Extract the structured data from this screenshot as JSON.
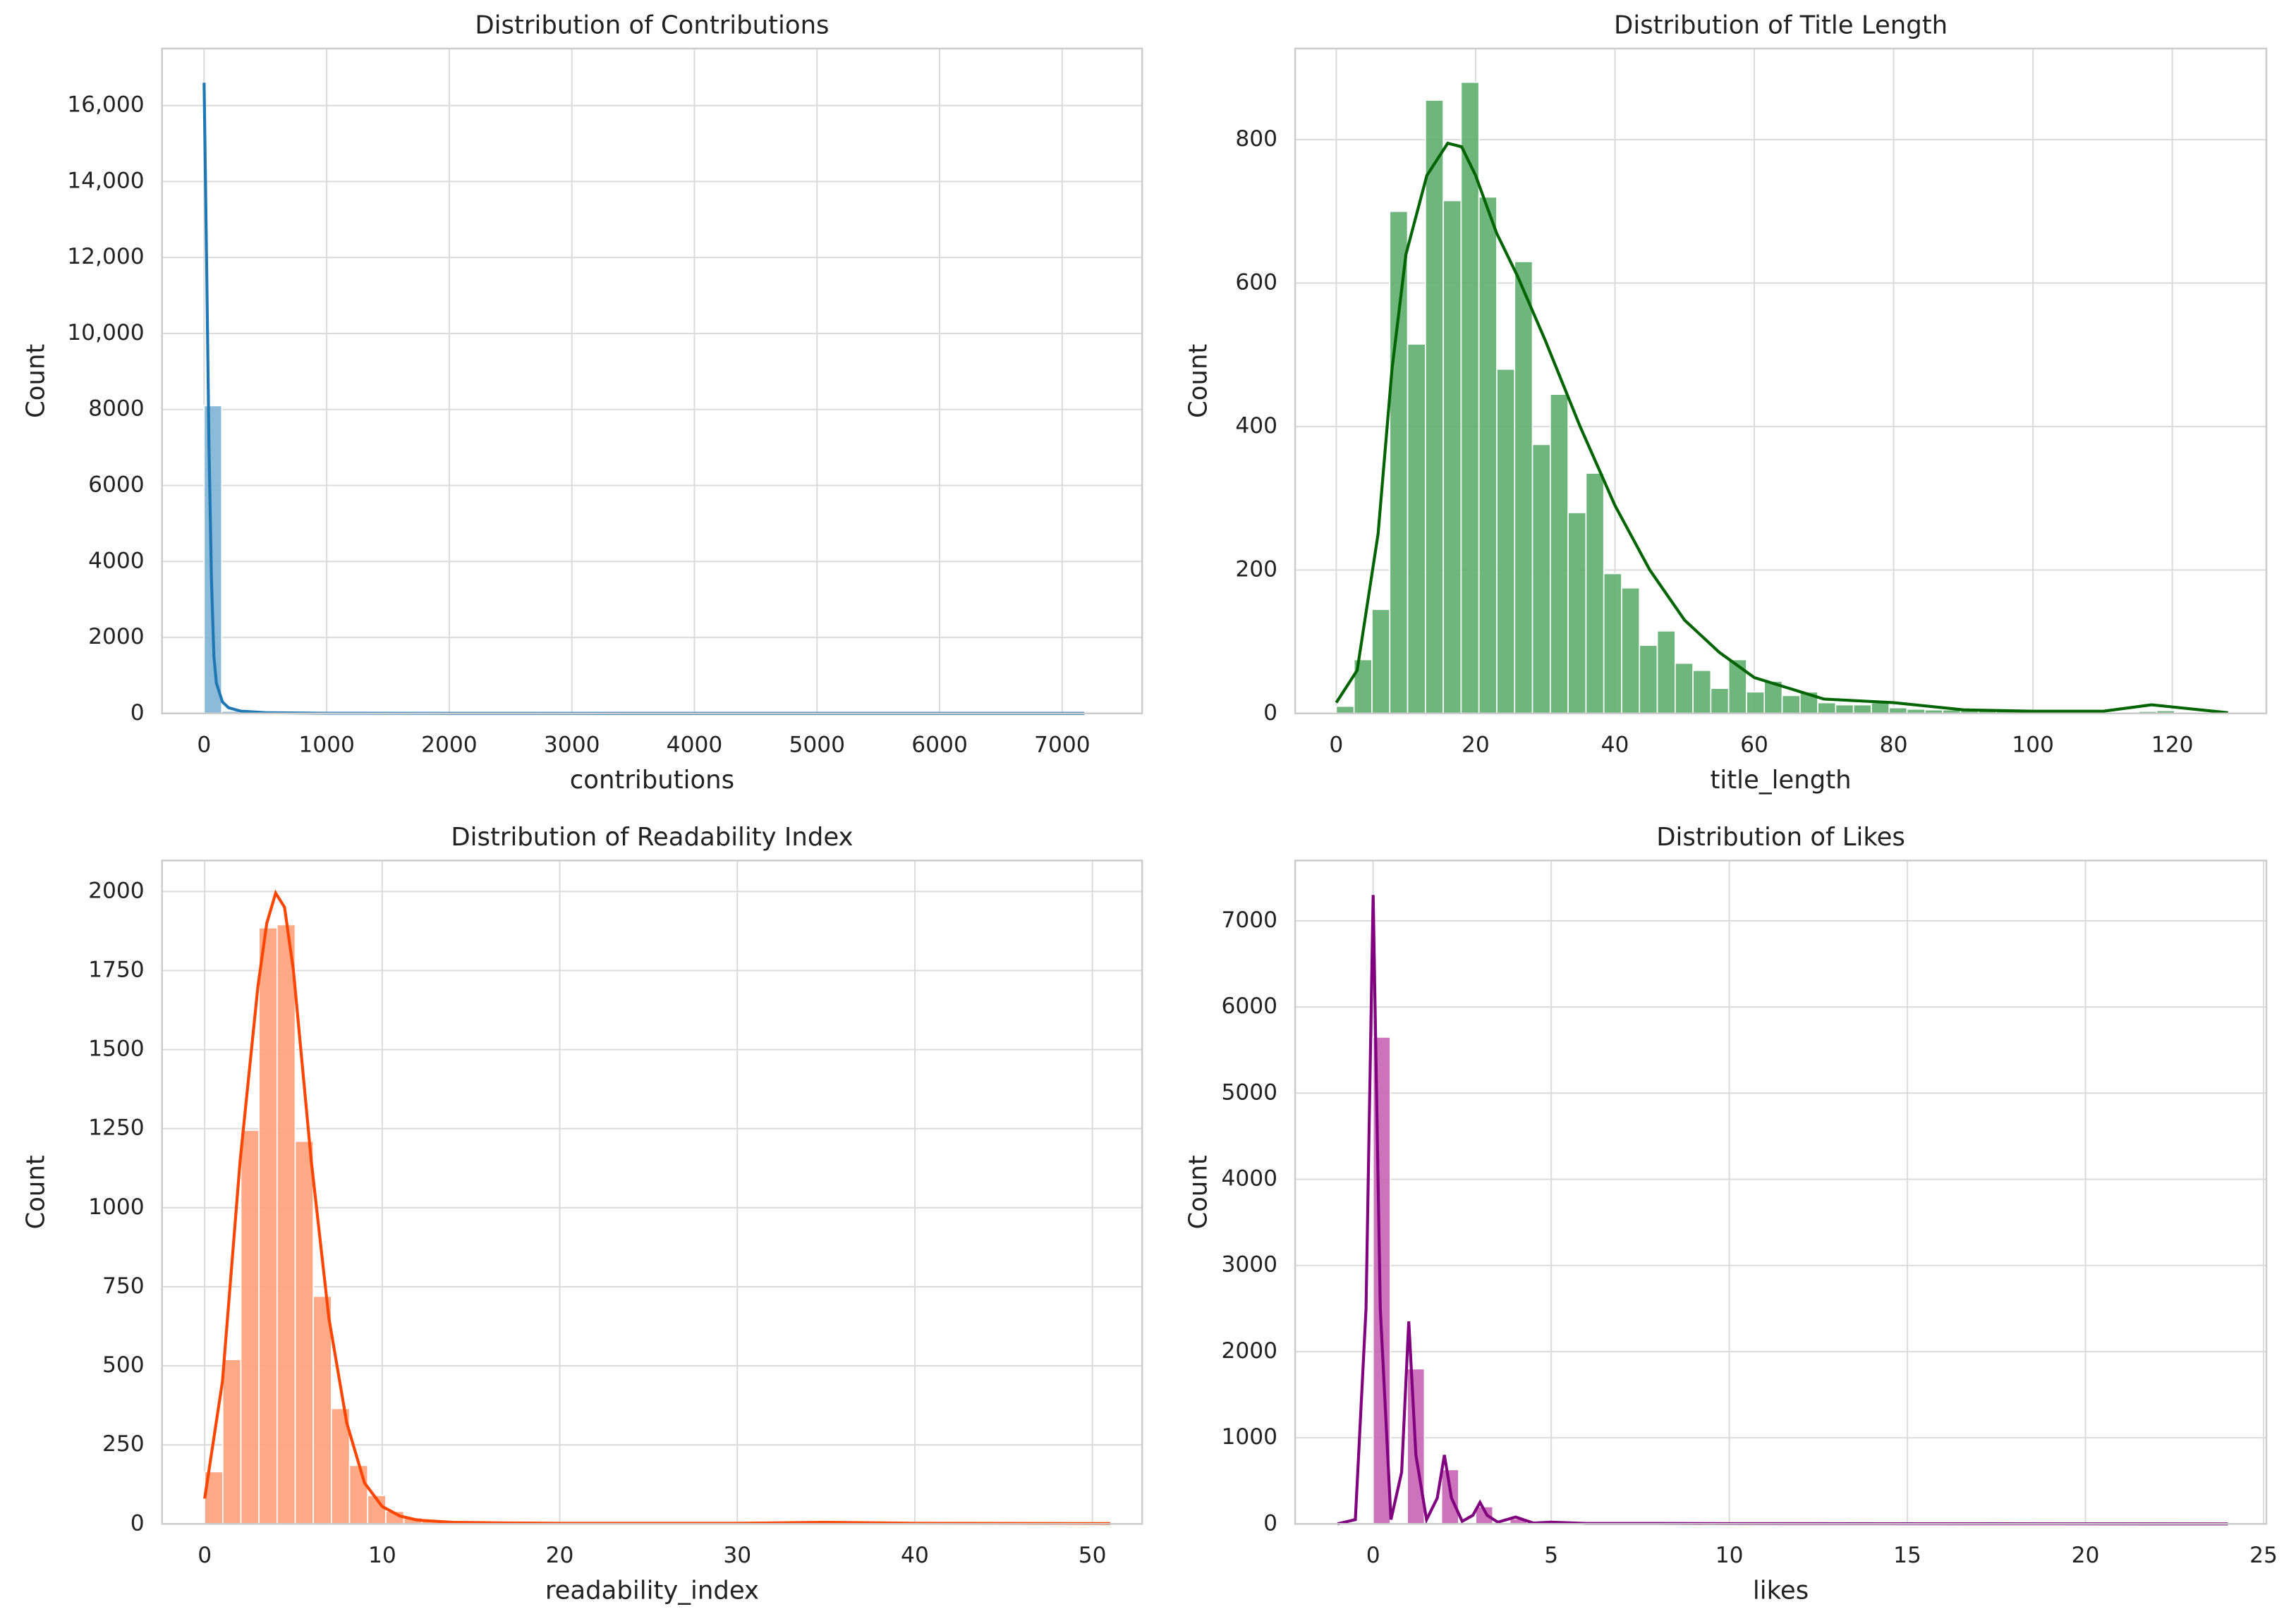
{
  "chart_data": [
    {
      "type": "histogram",
      "title": "Distribution of Contributions",
      "xlabel": "contributions",
      "ylabel": "Count",
      "color": "#7fb2d5",
      "grid": true,
      "xlim": [
        -343,
        7652
      ],
      "ylim": [
        0,
        17500
      ],
      "xticks": [
        0,
        1000,
        2000,
        3000,
        4000,
        5000,
        6000,
        7000
      ],
      "yticks": [
        0,
        2000,
        4000,
        6000,
        8000,
        {
          "value": 10000,
          "label": "10,000"
        },
        {
          "value": 12000,
          "label": "12,000"
        },
        {
          "value": 14000,
          "label": "14,000"
        },
        {
          "value": 16000,
          "label": "16,000"
        }
      ],
      "bins": [
        0,
        143.6,
        287.2,
        430.8,
        574.4,
        718,
        861.6,
        1005.2,
        1148.8,
        1292.4,
        1436,
        1579.6,
        1723.2,
        1866.8,
        2010.4,
        2154,
        2297.6,
        2441.2,
        2584.8,
        2728.4,
        2872,
        3015.6,
        3159.2,
        3302.8,
        3446.4,
        3590,
        3733.6,
        3877.2,
        4020.8,
        4164.4,
        4308,
        4451.6,
        4595.2,
        4738.8,
        4882.4,
        5026,
        5169.6,
        5313.2,
        5456.8,
        5600.4,
        5744,
        5887.6,
        6031.2,
        6174.8,
        6318.4,
        6462,
        6605.6,
        6749.2,
        6892.8,
        7036.4,
        7180
      ],
      "counts": [
        8100,
        60,
        25,
        15,
        10,
        8,
        6,
        5,
        4,
        3,
        3,
        2,
        2,
        2,
        2,
        1,
        1,
        1,
        1,
        1,
        1,
        1,
        1,
        1,
        1,
        1,
        1,
        1,
        1,
        1,
        1,
        1,
        1,
        1,
        1,
        1,
        1,
        1,
        1,
        1,
        1,
        1,
        1,
        1,
        1,
        1,
        1,
        1,
        1,
        1
      ],
      "kde": {
        "color": "#1f77b4",
        "x": [
          0,
          20,
          40,
          60,
          80,
          100,
          150,
          200,
          300,
          500,
          1000,
          2000,
          4000,
          7180
        ],
        "values": [
          16600,
          12000,
          7000,
          3500,
          1500,
          800,
          300,
          150,
          60,
          20,
          5,
          2,
          1,
          1
        ]
      }
    },
    {
      "type": "histogram",
      "title": "Distribution of Title Length",
      "xlabel": "title_length",
      "ylabel": "Count",
      "color": "#5fae6e",
      "grid": true,
      "xlim": [
        -5.9,
        133.5
      ],
      "ylim": [
        0,
        927
      ],
      "xticks": [
        0,
        20,
        40,
        60,
        80,
        100,
        120
      ],
      "yticks": [
        0,
        200,
        400,
        600,
        800
      ],
      "bins": [
        0,
        2.56,
        5.12,
        7.68,
        10.24,
        12.8,
        15.36,
        17.92,
        20.48,
        23.04,
        25.6,
        28.16,
        30.72,
        33.28,
        35.84,
        38.4,
        40.96,
        43.52,
        46.08,
        48.64,
        51.2,
        53.76,
        56.32,
        58.88,
        61.44,
        64,
        66.56,
        69.12,
        71.68,
        74.24,
        76.8,
        79.36,
        81.92,
        84.48,
        87.04,
        89.6,
        92.16,
        94.72,
        97.28,
        99.84,
        102.4,
        104.96,
        107.52,
        110.08,
        112.64,
        115.2,
        117.76,
        120.32,
        122.88,
        125.44,
        128
      ],
      "counts": [
        10,
        75,
        145,
        700,
        515,
        855,
        715,
        880,
        720,
        480,
        630,
        375,
        445,
        280,
        335,
        195,
        175,
        95,
        115,
        70,
        60,
        35,
        75,
        30,
        45,
        25,
        30,
        15,
        12,
        12,
        15,
        8,
        6,
        5,
        5,
        4,
        4,
        3,
        3,
        2,
        2,
        2,
        1,
        1,
        2,
        3,
        4,
        2,
        1,
        1
      ],
      "kde": {
        "color": "#006400",
        "x": [
          0,
          3,
          6,
          8,
          10,
          13,
          16,
          18,
          20,
          23,
          26,
          30,
          35,
          40,
          45,
          50,
          55,
          60,
          70,
          80,
          90,
          100,
          110,
          117,
          128
        ],
        "values": [
          15,
          60,
          250,
          480,
          640,
          750,
          795,
          790,
          750,
          670,
          610,
          520,
          400,
          290,
          200,
          130,
          85,
          50,
          20,
          15,
          5,
          3,
          3,
          12,
          1
        ]
      }
    },
    {
      "type": "histogram",
      "title": "Distribution of Readability Index",
      "xlabel": "readability_index",
      "ylabel": "Count",
      "color": "#ffa07a",
      "grid": true,
      "xlim": [
        -2.4,
        52.8
      ],
      "ylim": [
        0,
        2098
      ],
      "xticks": [
        0,
        10,
        20,
        30,
        40,
        50
      ],
      "yticks": [
        0,
        250,
        500,
        750,
        1000,
        1250,
        1500,
        1750,
        2000
      ],
      "bins": [
        0,
        1.02,
        2.04,
        3.06,
        4.08,
        5.1,
        6.12,
        7.14,
        8.16,
        9.18,
        10.2,
        11.22,
        12.24,
        13.26,
        14.28,
        15.3,
        16.32,
        17.34,
        18.36,
        19.38,
        20.4,
        21.42,
        22.44,
        23.46,
        24.48,
        25.5,
        26.52,
        27.54,
        28.56,
        29.58,
        30.6,
        31.62,
        32.64,
        33.66,
        34.68,
        35.7,
        36.72,
        37.74,
        38.76,
        39.78,
        40.8,
        41.82,
        42.84,
        43.86,
        44.88,
        45.9,
        46.92,
        47.94,
        48.96,
        49.98,
        51
      ],
      "counts": [
        165,
        520,
        1245,
        1885,
        1895,
        1210,
        720,
        365,
        185,
        90,
        40,
        20,
        10,
        6,
        4,
        3,
        2,
        2,
        1,
        1,
        1,
        1,
        1,
        1,
        1,
        1,
        1,
        1,
        1,
        1,
        1,
        1,
        1,
        2,
        2,
        1,
        1,
        1,
        1,
        1,
        1,
        1,
        1,
        1,
        1,
        1,
        1,
        1,
        1,
        1
      ],
      "kde": {
        "color": "#ff4500",
        "x": [
          0,
          1,
          2,
          3,
          3.5,
          4,
          4.5,
          5,
          6,
          7,
          8,
          9,
          10,
          11,
          12,
          14,
          17,
          20,
          30,
          35,
          40,
          51
        ],
        "values": [
          80,
          450,
          1150,
          1700,
          1900,
          1995,
          1950,
          1750,
          1150,
          650,
          320,
          130,
          55,
          25,
          12,
          5,
          3,
          2,
          2,
          5,
          2,
          1
        ]
      }
    },
    {
      "type": "histogram",
      "title": "Distribution of Likes",
      "xlabel": "likes",
      "ylabel": "Count",
      "color": "#c864b4",
      "grid": true,
      "xlim": [
        -2.19,
        25.08
      ],
      "ylim": [
        0,
        7700
      ],
      "xticks": [
        0,
        5,
        10,
        15,
        20,
        25
      ],
      "yticks": [
        0,
        1000,
        2000,
        3000,
        4000,
        5000,
        6000,
        7000
      ],
      "bins": [
        0,
        0.48,
        0.96,
        1.44,
        1.92,
        2.4,
        2.88,
        3.36,
        3.84,
        4.32,
        4.8,
        5.28,
        5.76,
        6.24,
        6.72,
        7.2,
        7.68,
        8.16,
        8.64,
        9.12,
        9.6,
        10.08,
        10.56,
        11.04,
        11.52,
        12,
        12.48,
        12.96,
        13.44,
        13.92,
        14.4,
        14.88,
        15.36,
        15.84,
        16.32,
        16.8,
        17.28,
        17.76,
        18.24,
        18.72,
        19.2,
        19.68,
        20.16,
        20.64,
        21.12,
        21.6,
        22.08,
        22.56,
        23.04,
        23.52,
        24
      ],
      "counts": [
        5650,
        0,
        1800,
        0,
        630,
        0,
        200,
        0,
        60,
        0,
        20,
        0,
        8,
        0,
        5,
        0,
        3,
        0,
        2,
        0,
        1,
        0,
        1,
        0,
        1,
        0,
        1,
        0,
        1,
        0,
        1,
        0,
        1,
        0,
        1,
        0,
        1,
        0,
        1,
        0,
        1,
        0,
        1,
        0,
        1,
        0,
        1,
        0,
        0,
        1
      ],
      "kde": {
        "color": "#800080",
        "x": [
          -1,
          -0.5,
          -0.2,
          0,
          0.2,
          0.5,
          0.8,
          1,
          1.2,
          1.5,
          1.8,
          2,
          2.2,
          2.5,
          2.8,
          3,
          3.2,
          3.5,
          4,
          4.5,
          5,
          6,
          8,
          10,
          24
        ],
        "values": [
          0,
          50,
          2500,
          7300,
          2500,
          50,
          600,
          2350,
          800,
          50,
          300,
          800,
          300,
          30,
          100,
          250,
          100,
          20,
          80,
          10,
          20,
          5,
          5,
          3,
          0
        ]
      }
    }
  ]
}
